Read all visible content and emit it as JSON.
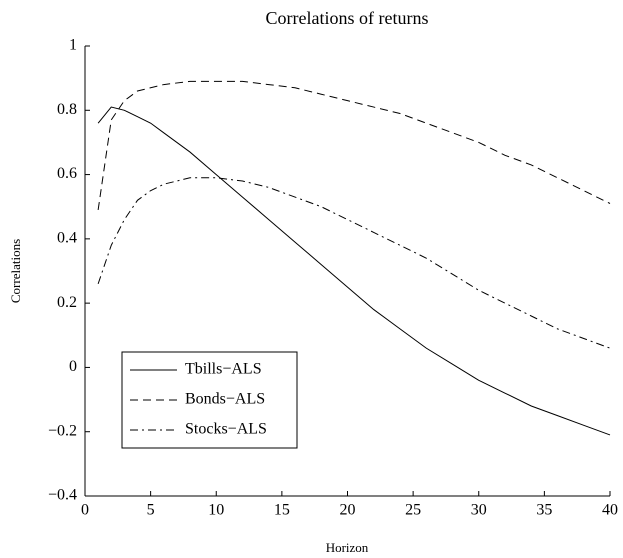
{
  "chart_data": {
    "type": "line",
    "title": "Correlations of returns",
    "x_label": "Horizon",
    "y_label": "Correlations",
    "x": [
      1,
      2,
      3,
      4,
      5,
      6,
      8,
      10,
      12,
      14,
      16,
      18,
      20,
      22,
      24,
      26,
      28,
      30,
      32,
      34,
      36,
      38,
      40
    ],
    "series": [
      {
        "name": "Tbills−ALS",
        "color": "#000000",
        "dash": "solid",
        "values": [
          0.76,
          0.81,
          0.8,
          0.78,
          0.76,
          0.73,
          0.67,
          0.6,
          0.53,
          0.46,
          0.39,
          0.32,
          0.25,
          0.18,
          0.12,
          0.06,
          0.01,
          -0.04,
          -0.08,
          -0.12,
          -0.15,
          -0.18,
          -0.21
        ]
      },
      {
        "name": "Bonds−ALS",
        "color": "#000000",
        "dash": "dashed",
        "values": [
          0.49,
          0.77,
          0.83,
          0.86,
          0.87,
          0.88,
          0.89,
          0.89,
          0.89,
          0.88,
          0.87,
          0.85,
          0.83,
          0.81,
          0.79,
          0.76,
          0.73,
          0.7,
          0.66,
          0.63,
          0.59,
          0.55,
          0.51
        ]
      },
      {
        "name": "Stocks−ALS",
        "color": "#000000",
        "dash": "dashdot",
        "values": [
          0.26,
          0.38,
          0.46,
          0.52,
          0.55,
          0.57,
          0.59,
          0.59,
          0.58,
          0.56,
          0.53,
          0.5,
          0.46,
          0.42,
          0.38,
          0.34,
          0.29,
          0.24,
          0.2,
          0.16,
          0.12,
          0.09,
          0.06
        ]
      }
    ],
    "xlim": [
      0,
      40
    ],
    "xticks": [
      0,
      5,
      10,
      15,
      20,
      25,
      30,
      35,
      40
    ],
    "ylim": [
      -0.4,
      1
    ],
    "yticks": [
      {
        "value": -0.4,
        "label": "−0.4"
      },
      {
        "value": -0.2,
        "label": "−0.2"
      },
      0,
      0.2,
      0.4,
      0.6,
      0.8,
      1
    ],
    "grid": false,
    "legend": "lower left"
  }
}
